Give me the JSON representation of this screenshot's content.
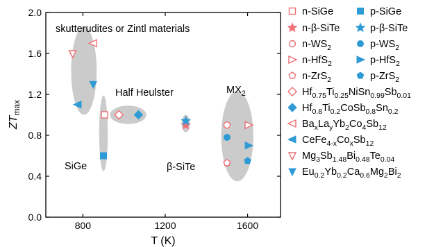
{
  "chart_data": {
    "type": "scatter",
    "title": "",
    "xlabel": "T (K)",
    "ylabel": "ZTmax",
    "xlim": [
      620,
      1760
    ],
    "ylim": [
      0,
      2.0
    ],
    "x_ticks": [
      "800",
      "1200",
      "1600"
    ],
    "y_ticks": [
      "0.0",
      "0.4",
      "0.8",
      "1.2",
      "1.6",
      "2.0"
    ],
    "grid": false,
    "legend_position": "right-outside",
    "colors": {
      "n_type": "#f06f75",
      "p_type": "#2f9bd6",
      "group_fill": "#cbcbcb"
    },
    "annotations": {
      "skutterudites": "skutterudites or Zintl materials",
      "half_heusler": "Half Heulster",
      "sige": "SiGe",
      "beta_sicte": "β-SiTe",
      "mx2": "MX2"
    },
    "groups": [
      {
        "label": "skutterudites",
        "cx": 805,
        "cy": 1.43,
        "rx": 62,
        "ry": 0.43
      },
      {
        "label": "sige",
        "cx": 900,
        "cy": 0.82,
        "rx": 21,
        "ry": 0.37
      },
      {
        "label": "half_heusler",
        "cx": 1020,
        "cy": 1.0,
        "rx": 88,
        "ry": 0.09
      },
      {
        "label": "beta_sicte",
        "cx": 1300,
        "cy": 0.915,
        "rx": 20,
        "ry": 0.085
      },
      {
        "label": "mx2",
        "cx": 1550,
        "cy": 0.79,
        "rx": 78,
        "ry": 0.44
      }
    ],
    "series": [
      {
        "name": "n-SiGe",
        "marker": "square",
        "filled": false,
        "color": "n",
        "points": [
          [
            905,
            1.0
          ]
        ]
      },
      {
        "name": "p-SiGe",
        "marker": "square",
        "filled": true,
        "color": "p",
        "points": [
          [
            900,
            0.6
          ]
        ]
      },
      {
        "name": "n-β-SiTe",
        "marker": "star",
        "filled": true,
        "color": "n",
        "points": [
          [
            1300,
            0.9
          ]
        ]
      },
      {
        "name": "p-β-SiTe",
        "marker": "star",
        "filled": true,
        "color": "p",
        "points": [
          [
            1300,
            0.94
          ]
        ]
      },
      {
        "name": "n-WS2",
        "marker": "circle",
        "filled": false,
        "color": "n",
        "points": [
          [
            1500,
            0.9
          ]
        ]
      },
      {
        "name": "p-WS2",
        "marker": "circle",
        "filled": true,
        "color": "p",
        "points": [
          [
            1500,
            0.78
          ]
        ]
      },
      {
        "name": "n-HfS2",
        "marker": "tri-right",
        "filled": false,
        "color": "n",
        "points": [
          [
            1605,
            0.9
          ]
        ]
      },
      {
        "name": "p-HfS2",
        "marker": "tri-right",
        "filled": true,
        "color": "p",
        "points": [
          [
            1605,
            0.7
          ]
        ]
      },
      {
        "name": "n-ZrS2",
        "marker": "pentagon",
        "filled": false,
        "color": "n",
        "points": [
          [
            1500,
            0.53
          ]
        ]
      },
      {
        "name": "p-ZrS2",
        "marker": "pentagon",
        "filled": true,
        "color": "p",
        "points": [
          [
            1600,
            0.55
          ]
        ]
      },
      {
        "name": "Hf0.75Ti0.25NiSn0.99Sb0.01",
        "marker": "diamond",
        "filled": false,
        "color": "n",
        "points": [
          [
            975,
            1.0
          ]
        ]
      },
      {
        "name": "Hf0.8Ti0.2CoSb0.8Sn0.2",
        "marker": "diamond",
        "filled": true,
        "color": "p",
        "points": [
          [
            1070,
            1.0
          ]
        ]
      },
      {
        "name": "BaxLayYb2Co4Sb12",
        "marker": "tri-left",
        "filled": false,
        "color": "n",
        "points": [
          [
            850,
            1.7
          ]
        ]
      },
      {
        "name": "CeFe4-xCoxSb12",
        "marker": "tri-left",
        "filled": true,
        "color": "p",
        "points": [
          [
            775,
            1.1
          ]
        ]
      },
      {
        "name": "Mg3Sb1.48Bi0.48Te0.04",
        "marker": "tri-down",
        "filled": false,
        "color": "n",
        "points": [
          [
            750,
            1.6
          ]
        ]
      },
      {
        "name": "Eu0.2Yb0.2Ca0.6Mg2Bi2",
        "marker": "tri-down",
        "filled": true,
        "color": "p",
        "points": [
          [
            850,
            1.3
          ]
        ]
      }
    ],
    "legend": [
      {
        "key": "n-SiGe",
        "parts": [
          [
            "n-SiGe",
            ""
          ]
        ]
      },
      {
        "key": "p-SiGe",
        "parts": [
          [
            "p-SiGe",
            ""
          ]
        ]
      },
      {
        "key": "n-β-SiTe",
        "parts": [
          [
            "n-β-SiTe",
            ""
          ]
        ]
      },
      {
        "key": "p-β-SiTe",
        "parts": [
          [
            "p-β-SiTe",
            ""
          ]
        ]
      },
      {
        "key": "n-WS2",
        "parts": [
          [
            "n-WS",
            ""
          ],
          [
            "2",
            "sub"
          ]
        ]
      },
      {
        "key": "p-WS2",
        "parts": [
          [
            "p-WS",
            ""
          ],
          [
            "2",
            "sub"
          ]
        ]
      },
      {
        "key": "n-HfS2",
        "parts": [
          [
            "n-HfS",
            ""
          ],
          [
            "2",
            "sub"
          ]
        ]
      },
      {
        "key": "p-HfS2",
        "parts": [
          [
            "p-HfS",
            ""
          ],
          [
            "2",
            "sub"
          ]
        ]
      },
      {
        "key": "n-ZrS2",
        "parts": [
          [
            "n-ZrS",
            ""
          ],
          [
            "2",
            "sub"
          ]
        ]
      },
      {
        "key": "p-ZrS2",
        "parts": [
          [
            "p-ZrS",
            ""
          ],
          [
            "2",
            "sub"
          ]
        ]
      },
      {
        "key": "Hf0.75Ti0.25NiSn0.99Sb0.01",
        "parts": [
          [
            "Hf",
            ""
          ],
          [
            "0.75",
            "sub"
          ],
          [
            "Ti",
            ""
          ],
          [
            "0.25",
            "sub"
          ],
          [
            "NiSn",
            ""
          ],
          [
            "0.99",
            "sub"
          ],
          [
            "Sb",
            ""
          ],
          [
            "0.01",
            "sub"
          ]
        ]
      },
      {
        "key": "Hf0.8Ti0.2CoSb0.8Sn0.2",
        "parts": [
          [
            "Hf",
            ""
          ],
          [
            "0.8",
            "sub"
          ],
          [
            "Ti",
            ""
          ],
          [
            "0.2",
            "sub"
          ],
          [
            "CoSb",
            ""
          ],
          [
            "0.8",
            "sub"
          ],
          [
            "Sn",
            ""
          ],
          [
            "0.2",
            "sub"
          ]
        ]
      },
      {
        "key": "BaxLayYb2Co4Sb12",
        "parts": [
          [
            "Ba",
            ""
          ],
          [
            "x",
            "sub"
          ],
          [
            "La",
            ""
          ],
          [
            "y",
            "sub"
          ],
          [
            "Yb",
            ""
          ],
          [
            "2",
            "sub"
          ],
          [
            "Co",
            ""
          ],
          [
            "4",
            "sub"
          ],
          [
            "Sb",
            ""
          ],
          [
            "12",
            "sub"
          ]
        ]
      },
      {
        "key": "CeFe4-xCoxSb12",
        "parts": [
          [
            "CeFe",
            ""
          ],
          [
            "4-x",
            "sub"
          ],
          [
            "Co",
            ""
          ],
          [
            "x",
            "sub"
          ],
          [
            "Sb",
            ""
          ],
          [
            "12",
            "sub"
          ]
        ]
      },
      {
        "key": "Mg3Sb1.48Bi0.48Te0.04",
        "parts": [
          [
            "Mg",
            ""
          ],
          [
            "3",
            "sub"
          ],
          [
            "Sb",
            ""
          ],
          [
            "1.48",
            "sub"
          ],
          [
            "Bi",
            ""
          ],
          [
            "0.48",
            "sub"
          ],
          [
            "Te",
            ""
          ],
          [
            "0.04",
            "sub"
          ]
        ]
      },
      {
        "key": "Eu0.2Yb0.2Ca0.6Mg2Bi2",
        "parts": [
          [
            "Eu",
            ""
          ],
          [
            "0.2",
            "sub"
          ],
          [
            "Yb",
            ""
          ],
          [
            "0.2",
            "sub"
          ],
          [
            "Ca",
            ""
          ],
          [
            "0.6",
            "sub"
          ],
          [
            "Mg",
            ""
          ],
          [
            "2",
            "sub"
          ],
          [
            "Bi",
            ""
          ],
          [
            "2",
            "sub"
          ]
        ]
      }
    ]
  }
}
